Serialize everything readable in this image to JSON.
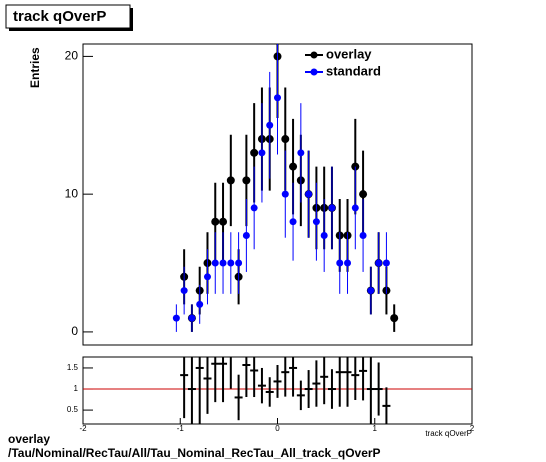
{
  "chart_data": [
    {
      "type": "scatter",
      "title": "track qOverP",
      "y_label": "Entries",
      "x": [
        -1.04,
        -0.96,
        -0.88,
        -0.8,
        -0.72,
        -0.64,
        -0.56,
        -0.48,
        -0.4,
        -0.32,
        -0.24,
        -0.16,
        -0.08,
        0,
        0.08,
        0.16,
        0.24,
        0.32,
        0.4,
        0.48,
        0.56,
        0.64,
        0.72,
        0.8,
        0.88,
        0.96,
        1.04,
        1.12,
        1.2
      ],
      "series": [
        {
          "name": "overlay",
          "color": "#000000",
          "values": [
            null,
            4,
            1,
            3,
            5,
            8,
            8,
            11,
            4,
            11,
            13,
            14,
            14,
            20,
            14,
            12,
            11,
            10,
            9,
            9,
            9,
            7,
            7,
            12,
            10,
            3,
            5,
            3,
            1
          ]
        },
        {
          "name": "standard",
          "color": "#0000ff",
          "values": [
            1,
            3,
            1,
            2,
            4,
            5,
            5,
            5,
            5,
            7,
            9,
            13,
            15,
            17,
            10,
            8,
            13,
            10,
            8,
            7,
            9,
            5,
            5,
            9,
            7,
            3,
            5,
            5,
            null
          ]
        }
      ],
      "xlim": [
        -2,
        2
      ],
      "ylim": [
        -0.95,
        20.9
      ],
      "yticks": [
        0,
        10,
        20
      ],
      "legend": "top-right"
    },
    {
      "type": "ratio",
      "x_label": "track qOverP",
      "x": [
        -0.96,
        -0.88,
        -0.8,
        -0.72,
        -0.64,
        -0.56,
        -0.48,
        -0.4,
        -0.32,
        -0.24,
        -0.16,
        -0.08,
        0,
        0.08,
        0.16,
        0.24,
        0.32,
        0.4,
        0.48,
        0.56,
        0.64,
        0.72,
        0.8,
        0.88,
        0.96,
        1.04,
        1.12
      ],
      "values": [
        1.33,
        1,
        1.5,
        1.25,
        1.6,
        1.6,
        2.2,
        0.8,
        1.57,
        1.44,
        1.08,
        0.93,
        1.18,
        1.4,
        1.5,
        0.85,
        1,
        1.13,
        1.29,
        1,
        1.4,
        1.4,
        1.33,
        1.43,
        1,
        1,
        0.6
      ],
      "errors": [
        1.02,
        1.41,
        1.37,
        0.84,
        0.91,
        0.91,
        1.19,
        0.54,
        0.76,
        0.63,
        0.42,
        0.35,
        0.39,
        0.58,
        0.68,
        0.35,
        0.45,
        0.55,
        0.65,
        0.47,
        0.82,
        0.82,
        0.59,
        0.7,
        0.82,
        0.63,
        0.44
      ],
      "color": "#000000",
      "reference_line": 1,
      "reference_color": "#cc0000",
      "xlim": [
        -2,
        2
      ],
      "xticks": [
        -2,
        -1,
        0,
        1,
        2
      ],
      "ylim": [
        0.17,
        1.76
      ],
      "yticks": [
        0.5,
        1,
        1.5
      ]
    }
  ],
  "footer": {
    "line1": "overlay",
    "line2": "/Tau/Nominal/RecTau/All/Tau_Nominal_RecTau_All_track_qOverP"
  }
}
